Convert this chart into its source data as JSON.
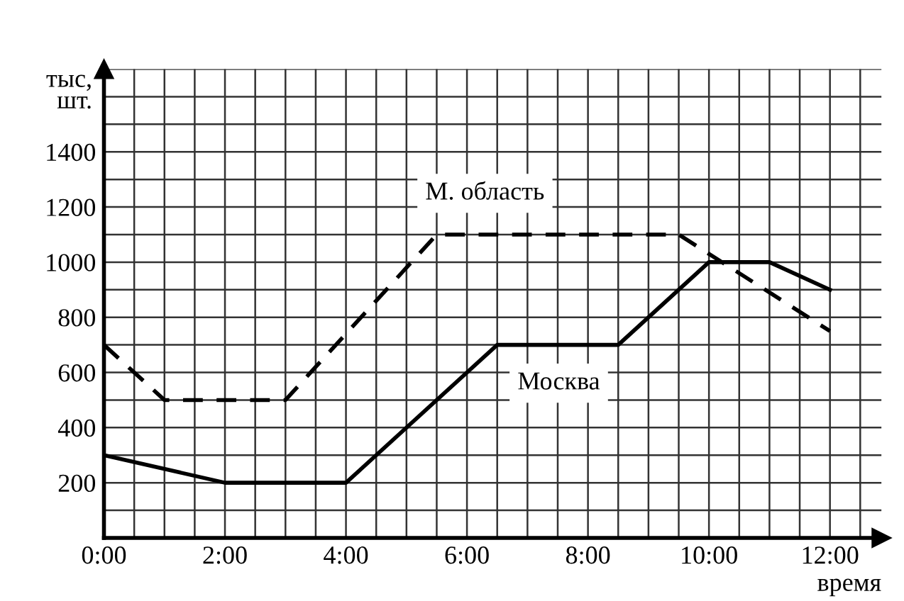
{
  "chart_data": {
    "type": "line",
    "xlabel": "время",
    "ylabel": "тыс,\nшт.",
    "xlim": [
      0,
      12.85
    ],
    "ylim": [
      0,
      1700
    ],
    "xticks": [
      {
        "value": 0,
        "label": "0:00"
      },
      {
        "value": 0.5,
        "label": null
      },
      {
        "value": 1,
        "label": null
      },
      {
        "value": 1.5,
        "label": null
      },
      {
        "value": 2,
        "label": "2:00"
      },
      {
        "value": 2.5,
        "label": null
      },
      {
        "value": 3,
        "label": null
      },
      {
        "value": 3.5,
        "label": null
      },
      {
        "value": 4,
        "label": "4:00"
      },
      {
        "value": 4.5,
        "label": null
      },
      {
        "value": 5,
        "label": null
      },
      {
        "value": 5.5,
        "label": null
      },
      {
        "value": 6,
        "label": "6:00"
      },
      {
        "value": 6.5,
        "label": null
      },
      {
        "value": 7,
        "label": null
      },
      {
        "value": 7.5,
        "label": null
      },
      {
        "value": 8,
        "label": "8:00"
      },
      {
        "value": 8.5,
        "label": null
      },
      {
        "value": 9,
        "label": null
      },
      {
        "value": 9.5,
        "label": null
      },
      {
        "value": 10,
        "label": "10:00"
      },
      {
        "value": 10.5,
        "label": null
      },
      {
        "value": 11,
        "label": null
      },
      {
        "value": 11.5,
        "label": null
      },
      {
        "value": 12,
        "label": "12:00"
      },
      {
        "value": 12.5,
        "label": null
      }
    ],
    "yticks": [
      {
        "value": 100,
        "label": null
      },
      200,
      {
        "value": 300,
        "label": null
      },
      400,
      {
        "value": 500,
        "label": null
      },
      600,
      {
        "value": 700,
        "label": null
      },
      800,
      {
        "value": 900,
        "label": null
      },
      1000,
      {
        "value": 1100,
        "label": null
      },
      1200,
      {
        "value": 1300,
        "label": null
      },
      1400,
      {
        "value": 1500,
        "label": null
      },
      {
        "value": 1600,
        "label": null
      },
      {
        "value": 1700,
        "label": null
      }
    ],
    "grid": true,
    "legend": false,
    "marker": "none",
    "series": [
      {
        "name": "Москва",
        "color": "#000000",
        "line_style": "solid",
        "x": [
          0,
          2,
          4,
          6.5,
          8.5,
          10,
          11,
          12
        ],
        "values": [
          300,
          200,
          200,
          700,
          700,
          1000,
          1000,
          900
        ]
      },
      {
        "name": "М. область",
        "color": "#000000",
        "line_style": "dashed",
        "x": [
          0,
          1,
          3,
          5.5,
          9.5,
          12
        ],
        "values": [
          700,
          500,
          500,
          1100,
          1100,
          750
        ]
      }
    ]
  }
}
